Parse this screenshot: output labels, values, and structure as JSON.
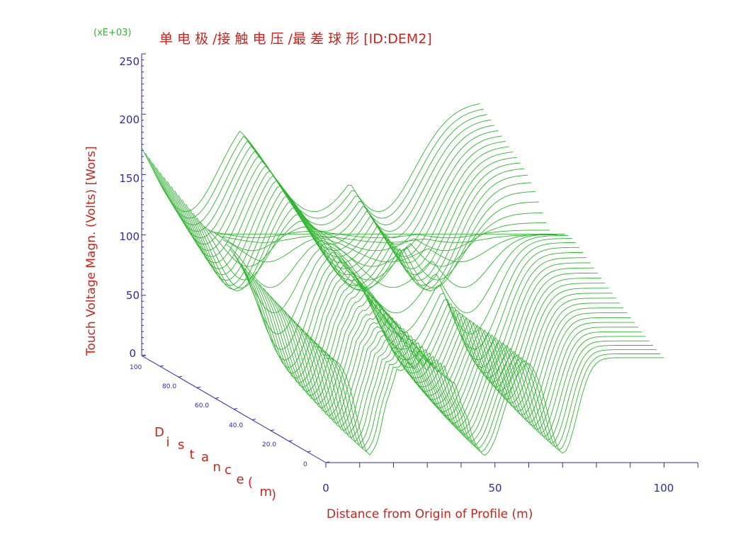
{
  "chart_data": {
    "type": "surface-3d",
    "title": "单 电 极 /接 触 电 压 /最 差 球 形  [ID:DEM2]",
    "scale_note": "(xE+03)",
    "ylabel": "Touch Voltage Magn. (Volts) [Wors]",
    "xlabel": "Distance from Origin of Profile (m)",
    "zlabel": "Distance (m)",
    "ylim": [
      0,
      250
    ],
    "xlim": [
      0,
      110
    ],
    "zlim": [
      0,
      100
    ],
    "y_ticks": [
      "250",
      "200",
      "150",
      "100",
      "50",
      "0"
    ],
    "x_ticks": [
      "0",
      "50",
      "100"
    ],
    "z_ticks": [
      "100",
      "80.0",
      "60.0",
      "40.0",
      "20.0",
      "0"
    ],
    "colors": {
      "surface": "#2fb52f",
      "axis": "#2a2ab0",
      "text": "#c8241c"
    },
    "profile_count": 51,
    "back_profile_peak": 218,
    "front_profile_corner": 90,
    "ridge_value": 141,
    "valley_min": 0
  }
}
